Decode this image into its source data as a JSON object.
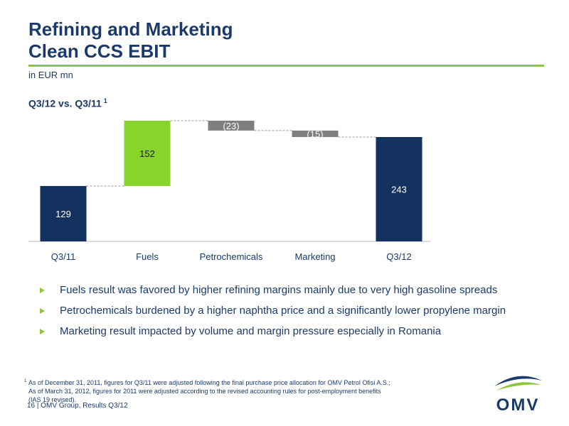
{
  "header": {
    "title_lines": [
      "Refining and Marketing",
      "Clean CCS EBIT"
    ],
    "unit": "in EUR mn"
  },
  "chart_data": {
    "type": "waterfall",
    "title": "Q3/12 vs. Q3/11",
    "title_note": "1",
    "categories": [
      "Q3/11",
      "Fuels",
      "Petrochemicals",
      "Marketing",
      "Q3/12"
    ],
    "values": [
      129,
      152,
      -23,
      -15,
      243
    ],
    "value_labels": [
      "129",
      "152",
      "(23)",
      "(15)",
      "243"
    ],
    "totals": [
      true,
      false,
      false,
      false,
      true
    ],
    "colors": [
      "#13325f",
      "#88d42c",
      "#7f7f7f",
      "#7f7f7f",
      "#13325f"
    ]
  },
  "bullets": [
    "Fuels result was favored by higher refining margins mainly due to very high gasoline spreads",
    "Petrochemicals burdened by a higher naphtha price and a significantly lower propylene margin",
    "Marketing result impacted by volume and margin pressure especially in Romania"
  ],
  "footnote": {
    "marker": "1",
    "lines": [
      "As of December 31, 2011, figures for Q3/11 were adjusted following the final purchase price allocation for OMV Petrol Ofisi A.S.;",
      "As of March 31, 2012, figures for 2011 were adjusted according to the revised accounting rules for post-employment benefits",
      "(IAS 19 revised)."
    ]
  },
  "footer": {
    "page": "16",
    "text": "OMV Group, Results Q3/12"
  },
  "logo": {
    "text": "OMV"
  }
}
